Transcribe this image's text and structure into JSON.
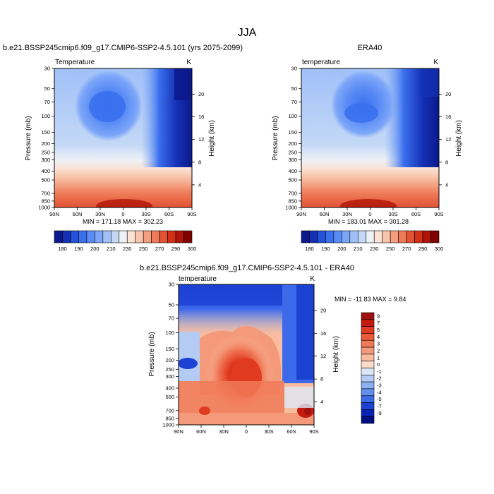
{
  "figure": {
    "title": "JJA"
  },
  "chart_data": [
    {
      "type": "heatmap",
      "name": "model-panel",
      "title": "b.e21.BSSP245cmip6.f09_g17.CMIP6-SSP2-4.5.101 (yrs 2075-2099)",
      "left_label": "Temperature",
      "right_label": "K",
      "xlabel": "",
      "ylabel": "Pressure (mb)",
      "ylabel_right": "Height (km)",
      "x_ticks": [
        "90N",
        "60N",
        "30N",
        "0",
        "30S",
        "60S",
        "90S"
      ],
      "x_values": [
        90,
        60,
        30,
        0,
        -30,
        -60,
        -90
      ],
      "y_ticks": [
        "30",
        "50",
        "70",
        "100",
        "150",
        "200",
        "250",
        "300",
        "400",
        "500",
        "700",
        "850",
        "1000"
      ],
      "y_values": [
        30,
        50,
        70,
        100,
        150,
        200,
        250,
        300,
        400,
        500,
        700,
        850,
        1000
      ],
      "ylim": [
        30,
        1000
      ],
      "y_scale": "log",
      "height_ticks": [
        "20",
        "16",
        "12",
        "8",
        "4"
      ],
      "height_values": [
        20,
        16,
        12,
        8,
        4
      ],
      "stats": "MIN = 171.18   MAX = 302.23",
      "min": 171.18,
      "max": 302.23,
      "colorbar_labels": [
        "180",
        "190",
        "200",
        "210",
        "230",
        "250",
        "270",
        "290",
        "300"
      ],
      "colorbar_levels": [
        180,
        185,
        190,
        195,
        200,
        205,
        210,
        220,
        230,
        240,
        250,
        260,
        270,
        280,
        290,
        295,
        300
      ],
      "colorbar_colors": [
        "#0a1a8c",
        "#1530b4",
        "#2452d8",
        "#3a70ee",
        "#5a8cf6",
        "#7ca6f8",
        "#a0c0f8",
        "#c4d8f6",
        "#eef1f6",
        "#fbe2d4",
        "#f8c4aa",
        "#f4a080",
        "#ee7a58",
        "#e45234",
        "#d23018",
        "#b01408",
        "#800000"
      ]
    },
    {
      "type": "heatmap",
      "name": "obs-panel",
      "title": "ERA40",
      "left_label": "temperature",
      "right_label": "K",
      "xlabel": "",
      "ylabel": "Pressure (mb)",
      "ylabel_right": "Height (km)",
      "x_ticks": [
        "90N",
        "60N",
        "30N",
        "0",
        "30S",
        "60S",
        "90S"
      ],
      "x_values": [
        90,
        60,
        30,
        0,
        -30,
        -60,
        -90
      ],
      "y_ticks": [
        "30",
        "50",
        "70",
        "100",
        "150",
        "200",
        "250",
        "300",
        "400",
        "500",
        "700",
        "850",
        "1000"
      ],
      "y_values": [
        30,
        50,
        70,
        100,
        150,
        200,
        250,
        300,
        400,
        500,
        700,
        850,
        1000
      ],
      "ylim": [
        30,
        1000
      ],
      "y_scale": "log",
      "height_ticks": [
        "20",
        "16",
        "12",
        "8",
        "4"
      ],
      "height_values": [
        20,
        16,
        12,
        8,
        4
      ],
      "stats": "MIN = 183.01   MAX = 301.28",
      "min": 183.01,
      "max": 301.28,
      "colorbar_labels": [
        "180",
        "190",
        "200",
        "210",
        "230",
        "250",
        "270",
        "290",
        "300"
      ],
      "colorbar_levels": [
        180,
        185,
        190,
        195,
        200,
        205,
        210,
        220,
        230,
        240,
        250,
        260,
        270,
        280,
        290,
        295,
        300
      ],
      "colorbar_colors": [
        "#0a1a8c",
        "#1530b4",
        "#2452d8",
        "#3a70ee",
        "#5a8cf6",
        "#7ca6f8",
        "#a0c0f8",
        "#c4d8f6",
        "#eef1f6",
        "#fbe2d4",
        "#f8c4aa",
        "#f4a080",
        "#ee7a58",
        "#e45234",
        "#d23018",
        "#b01408",
        "#800000"
      ]
    },
    {
      "type": "heatmap",
      "name": "diff-panel",
      "title": "b.e21.BSSP245cmip6.f09_g17.CMIP6-SSP2-4.5.101 - ERA40",
      "left_label": "temperature",
      "right_label": "K",
      "xlabel": "",
      "ylabel": "Pressure (mb)",
      "ylabel_right": "Height (km)",
      "x_ticks": [
        "90N",
        "60N",
        "30N",
        "0",
        "30S",
        "60S",
        "90S"
      ],
      "x_values": [
        90,
        60,
        30,
        0,
        -30,
        -60,
        -90
      ],
      "y_ticks": [
        "30",
        "50",
        "70",
        "100",
        "150",
        "200",
        "250",
        "300",
        "400",
        "500",
        "700",
        "850",
        "1000"
      ],
      "y_values": [
        30,
        50,
        70,
        100,
        150,
        200,
        250,
        300,
        400,
        500,
        700,
        850,
        1000
      ],
      "ylim": [
        30,
        1000
      ],
      "y_scale": "log",
      "height_ticks": [
        "20",
        "16",
        "12",
        "8",
        "4"
      ],
      "height_values": [
        20,
        16,
        12,
        8,
        4
      ],
      "stats": "MIN = -11.83  MAX =   9.84",
      "min": -11.83,
      "max": 9.84,
      "colorbar_labels": [
        "9",
        "7",
        "5",
        "4",
        "3",
        "2",
        "1",
        "0",
        "-1",
        "-2",
        "-3",
        "-4",
        "-5",
        "-7",
        "-9"
      ],
      "colorbar_levels": [
        9,
        7,
        5,
        4,
        3,
        2,
        1,
        0,
        -1,
        -2,
        -3,
        -4,
        -5,
        -7,
        -9
      ],
      "colorbar_colors": [
        "#a01010",
        "#c41a10",
        "#e03a20",
        "#ec5a3a",
        "#f07a58",
        "#f49a7a",
        "#f8bca0",
        "#fadcc8",
        "#dce8f6",
        "#b4ccf4",
        "#8cb0f2",
        "#6690ee",
        "#3c6aea",
        "#1c42d4",
        "#0a22b4",
        "#001080"
      ]
    }
  ]
}
